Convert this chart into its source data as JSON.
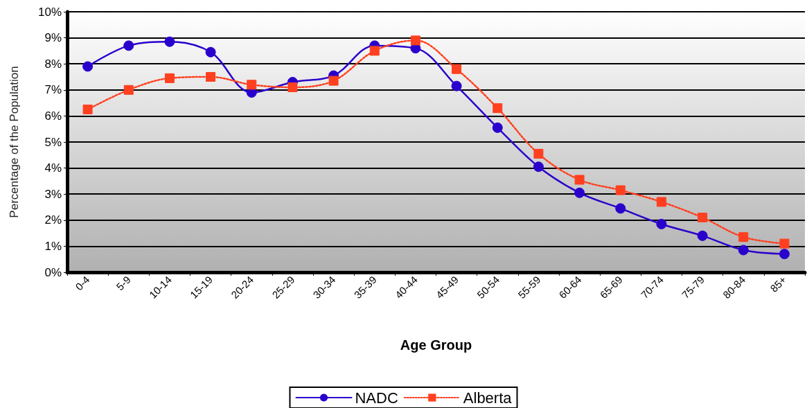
{
  "chart_data": {
    "type": "line",
    "xlabel": "Age Group",
    "ylabel": "Percentage of the Population",
    "categories": [
      "0-4",
      "5-9",
      "10-14",
      "15-19",
      "20-24",
      "25-29",
      "30-34",
      "35-39",
      "40-44",
      "45-49",
      "50-54",
      "55-59",
      "60-64",
      "65-69",
      "70-74",
      "75-79",
      "80-84",
      "85+"
    ],
    "series": [
      {
        "name": "NADC",
        "color": "#2a00cc",
        "marker": "circle",
        "line_style": "solid",
        "values": [
          7.9,
          8.7,
          8.85,
          8.45,
          6.9,
          7.3,
          7.55,
          8.7,
          8.6,
          7.15,
          5.55,
          4.05,
          3.05,
          2.45,
          1.85,
          1.4,
          0.85,
          0.7
        ]
      },
      {
        "name": "Alberta",
        "color": "#ff4020",
        "marker": "square",
        "line_style": "dotted",
        "values": [
          6.25,
          7.0,
          7.45,
          7.5,
          7.2,
          7.1,
          7.35,
          8.5,
          8.9,
          7.8,
          6.3,
          4.55,
          3.55,
          3.15,
          2.7,
          2.1,
          1.35,
          1.1
        ]
      }
    ],
    "ylim": [
      0,
      10
    ],
    "yticks": [
      {
        "value": 0,
        "label": "0%"
      },
      {
        "value": 1,
        "label": "1%"
      },
      {
        "value": 2,
        "label": "2%"
      },
      {
        "value": 3,
        "label": "3%"
      },
      {
        "value": 4,
        "label": "4%"
      },
      {
        "value": 5,
        "label": "5%"
      },
      {
        "value": 6,
        "label": "6%"
      },
      {
        "value": 7,
        "label": "7%"
      },
      {
        "value": 8,
        "label": "8%"
      },
      {
        "value": 9,
        "label": "9%"
      },
      {
        "value": 10,
        "label": "10%"
      }
    ],
    "grid": "y",
    "legend": "bottom"
  }
}
